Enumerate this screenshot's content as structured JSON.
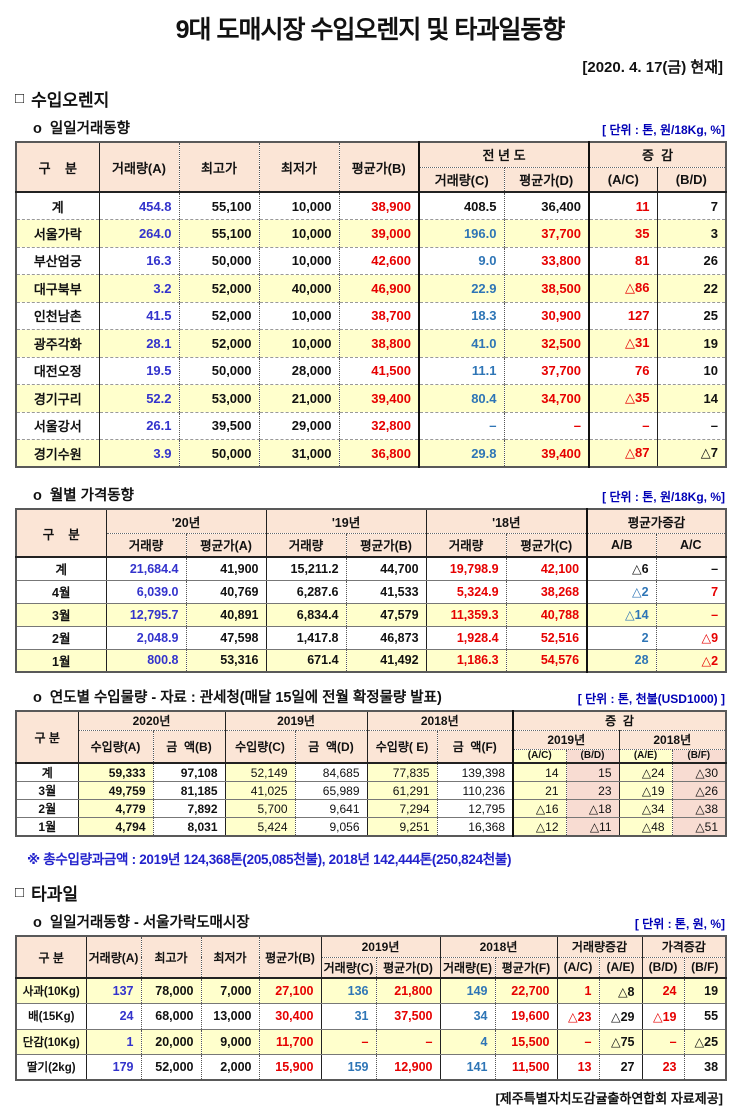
{
  "page": {
    "title": "9대 도매시장 수입오렌지 및 타과일동향",
    "date": "[2020. 4. 17(금) 현재]",
    "note": "※ 총수입량과금액 : 2019년 124,368톤(205,085천불),  2018년 142,444톤(250,824천불)",
    "footer": "[제주특별자치도감귤출하연합회 자료제공]"
  },
  "sections": {
    "orange": {
      "bullet": "□",
      "label": "수입오렌지"
    },
    "other_fruit": {
      "bullet": "□",
      "label": "타과일"
    }
  },
  "subsections": {
    "daily": {
      "bullet": "o",
      "label": "일일거래동향",
      "unit": "[ 단위 : 톤, 원/18Kg, %]"
    },
    "monthly": {
      "bullet": "o",
      "label": "월별 가격동향",
      "unit": "[ 단위 : 톤, 원/18Kg, %]"
    },
    "yearly": {
      "bullet": "o",
      "label": "연도별 수입물량 - 자료 : 관세청(매달 15일에 전월 확정물량 발표)",
      "unit": "[ 단위 : 톤, 천불(USD1000) ]"
    },
    "fruit_daily": {
      "bullet": "o",
      "label": "일일거래동향 - 서울가락도매시장",
      "unit": "[ 단위 : 톤, 원, %]"
    }
  },
  "colors": {
    "accent_red": "#e60000",
    "accent_blue": "#3333cc",
    "accent_lightblue": "#2e75b6",
    "header_bg": "#fbe5d6",
    "row_yellow": "#ffffcc",
    "cell_pink": "#f8dcd2",
    "note_blue": "#2222cc"
  },
  "tables": [
    {
      "id": "t1",
      "name": "orange-daily-trade-table",
      "widths": [
        83,
        80,
        80,
        80,
        80,
        85,
        85,
        68,
        69
      ],
      "header": [
        [
          {
            "t": "구    분",
            "rs": 2
          },
          {
            "t": "거래량(A)",
            "rs": 2,
            "sep": "s"
          },
          {
            "t": "최고가",
            "rs": 2,
            "sep": "d"
          },
          {
            "t": "최저가",
            "rs": 2,
            "sep": "d"
          },
          {
            "t": "평균가(B)",
            "rs": 2,
            "sep": "d"
          },
          {
            "t": "전 년 도",
            "cs": 2,
            "sep": "s2"
          },
          {
            "t": "증  감",
            "cs": 2,
            "sep": "s2"
          }
        ],
        [
          {
            "t": "거래량(C)",
            "sep": "s2"
          },
          {
            "t": "평균가(D)",
            "sep": "d"
          },
          {
            "t": "(A/C)",
            "sep": "s2"
          },
          {
            "t": "(B/D)",
            "sep": "s"
          }
        ]
      ],
      "col_align": [
        "c",
        "r",
        "r",
        "r",
        "r",
        "r",
        "r",
        "r",
        "r"
      ],
      "col_color": [
        "blk",
        "blue",
        "blk",
        "blk",
        "red",
        "lblue",
        "red",
        "red",
        "blk"
      ],
      "col_sep": [
        "",
        "s",
        "d",
        "d",
        "d",
        "s2",
        "d",
        "s2",
        "s"
      ],
      "rows": [
        {
          "bg": "w",
          "dbl": true,
          "cells": [
            "계",
            "454.8",
            "55,100",
            "10,000",
            "38,900",
            "408.5",
            "36,400",
            "11",
            "7"
          ],
          "colors": {
            "5": "blk",
            "6": "blk"
          }
        },
        {
          "bg": "y",
          "cells": [
            "서울가락",
            "264.0",
            "55,100",
            "10,000",
            "39,000",
            "196.0",
            "37,700",
            "35",
            "3"
          ]
        },
        {
          "bg": "w",
          "cells": [
            "부산엄궁",
            "16.3",
            "50,000",
            "10,000",
            "42,600",
            "9.0",
            "33,800",
            "81",
            "26"
          ]
        },
        {
          "bg": "y",
          "cells": [
            "대구북부",
            "3.2",
            "52,000",
            "40,000",
            "46,900",
            "22.9",
            "38,500",
            "△86",
            "22"
          ]
        },
        {
          "bg": "w",
          "cells": [
            "인천남촌",
            "41.5",
            "52,000",
            "10,000",
            "38,700",
            "18.3",
            "30,900",
            "127",
            "25"
          ]
        },
        {
          "bg": "y",
          "cells": [
            "광주각화",
            "28.1",
            "52,000",
            "10,000",
            "38,800",
            "41.0",
            "32,500",
            "△31",
            "19"
          ]
        },
        {
          "bg": "w",
          "cells": [
            "대전오정",
            "19.5",
            "50,000",
            "28,000",
            "41,500",
            "11.1",
            "37,700",
            "76",
            "10"
          ]
        },
        {
          "bg": "y",
          "cells": [
            "경기구리",
            "52.2",
            "53,000",
            "21,000",
            "39,400",
            "80.4",
            "34,700",
            "△35",
            "14"
          ]
        },
        {
          "bg": "w",
          "cells": [
            "서울강서",
            "26.1",
            "39,500",
            "29,000",
            "32,800",
            "–",
            "–",
            "–",
            "–"
          ]
        },
        {
          "bg": "y",
          "cells": [
            "경기수원",
            "3.9",
            "50,000",
            "31,000",
            "36,800",
            "29.8",
            "39,400",
            "△87",
            "△7"
          ]
        }
      ]
    },
    {
      "id": "t2",
      "name": "orange-monthly-price-table",
      "widths": [
        90,
        80,
        80,
        80,
        80,
        80,
        81,
        69,
        70
      ],
      "header": [
        [
          {
            "t": "구    분",
            "rs": 2
          },
          {
            "t": "'20년",
            "cs": 2,
            "sep": "s"
          },
          {
            "t": "'19년",
            "cs": 2,
            "sep": "s"
          },
          {
            "t": "'18년",
            "cs": 2,
            "sep": "s"
          },
          {
            "t": "평균가증감",
            "cs": 2,
            "sep": "s2"
          }
        ],
        [
          {
            "t": "거래량",
            "sep": "s"
          },
          {
            "t": "평균가(A)",
            "sep": "d"
          },
          {
            "t": "거래량",
            "sep": "s"
          },
          {
            "t": "평균가(B)",
            "sep": "d"
          },
          {
            "t": "거래량",
            "sep": "s"
          },
          {
            "t": "평균가(C)",
            "sep": "d"
          },
          {
            "t": "A/B",
            "sep": "s2"
          },
          {
            "t": "A/C",
            "sep": "d"
          }
        ]
      ],
      "col_align": [
        "c",
        "r",
        "r",
        "r",
        "r",
        "r",
        "r",
        "r",
        "r"
      ],
      "col_color": [
        "blk",
        "blue",
        "blk",
        "blk",
        "blk",
        "red",
        "red",
        "lblue",
        "red"
      ],
      "col_sep": [
        "",
        "s",
        "d",
        "s",
        "d",
        "s",
        "d",
        "s2",
        "d"
      ],
      "rows": [
        {
          "bg": "w",
          "dbl": true,
          "cells": [
            "계",
            "21,684.4",
            "41,900",
            "15,211.2",
            "44,700",
            "19,798.9",
            "42,100",
            "△6",
            "–"
          ],
          "colors": {
            "7": "blk",
            "8": "blk"
          }
        },
        {
          "bg": "w",
          "cells": [
            "4월",
            "6,039.0",
            "40,769",
            "6,287.6",
            "41,533",
            "5,324.9",
            "38,268",
            "△2",
            "7"
          ]
        },
        {
          "bg": "y",
          "cells": [
            "3월",
            "12,795.7",
            "40,891",
            "6,834.4",
            "47,579",
            "11,359.3",
            "40,788",
            "△14",
            "–"
          ]
        },
        {
          "bg": "w",
          "cells": [
            "2월",
            "2,048.9",
            "47,598",
            "1,417.8",
            "46,873",
            "1,928.4",
            "52,516",
            "2",
            "△9"
          ]
        },
        {
          "bg": "y",
          "cells": [
            "1월",
            "800.8",
            "53,316",
            "671.4",
            "41,492",
            "1,186.3",
            "54,576",
            "28",
            "△2"
          ]
        }
      ]
    },
    {
      "id": "t3",
      "name": "orange-yearly-import-table",
      "widths": [
        62,
        75,
        72,
        70,
        72,
        70,
        76,
        53,
        53,
        53,
        54
      ],
      "header": [
        [
          {
            "t": "구 분",
            "rs": 3
          },
          {
            "t": "2020년",
            "cs": 2,
            "sep": "s"
          },
          {
            "t": "2019년",
            "cs": 2,
            "sep": "s"
          },
          {
            "t": "2018년",
            "cs": 2,
            "sep": "s"
          },
          {
            "t": "증  감",
            "cs": 4,
            "sep": "s2"
          }
        ],
        [
          {
            "t": "수입량(A)",
            "rs": 2,
            "sep": "s"
          },
          {
            "t": "금  액(B)",
            "rs": 2,
            "sep": "d"
          },
          {
            "t": "수입량(C)",
            "rs": 2,
            "sep": "s"
          },
          {
            "t": "금  액(D)",
            "rs": 2,
            "sep": "d"
          },
          {
            "t": "수입량( E)",
            "rs": 2,
            "sep": "s"
          },
          {
            "t": "금  액(F)",
            "rs": 2,
            "sep": "d"
          },
          {
            "t": "2019년",
            "cs": 2,
            "sep": "s2"
          },
          {
            "t": "2018년",
            "cs": 2,
            "sep": "s"
          }
        ],
        [
          {
            "t": "(A/C)",
            "sep": "s2",
            "bg": "yel",
            "small": true
          },
          {
            "t": "(B/D)",
            "sep": "d",
            "bg": "pnk",
            "small": true
          },
          {
            "t": "(A/E)",
            "sep": "s",
            "bg": "yel",
            "small": true
          },
          {
            "t": "(B/F)",
            "sep": "d",
            "bg": "pnk",
            "small": true
          }
        ]
      ],
      "col_align": [
        "c",
        "r",
        "r",
        "r",
        "r",
        "r",
        "r",
        "r",
        "r",
        "r",
        "r"
      ],
      "col_color": [
        "blk",
        "blk",
        "blk",
        "blk",
        "blk",
        "blk",
        "blk",
        "blk",
        "blk",
        "blk",
        "blk"
      ],
      "col_sep": [
        "",
        "s",
        "d",
        "s",
        "d",
        "s",
        "d",
        "s2",
        "d",
        "s",
        "d"
      ],
      "col_bg": [
        "",
        "yel",
        "",
        "yel",
        "",
        "yel",
        "",
        "yel",
        "pnk",
        "yel",
        "pnk"
      ],
      "col_bold": [
        false,
        true,
        true,
        false,
        false,
        false,
        false,
        false,
        false,
        false,
        false
      ],
      "rows": [
        {
          "bg": "w",
          "dbl": true,
          "cells": [
            "계",
            "59,333",
            "97,108",
            "52,149",
            "84,685",
            "77,835",
            "139,398",
            "14",
            "15",
            "△24",
            "△30"
          ]
        },
        {
          "bg": "w",
          "cells": [
            "3월",
            "49,759",
            "81,185",
            "41,025",
            "65,989",
            "61,291",
            "110,236",
            "21",
            "23",
            "△19",
            "△26"
          ]
        },
        {
          "bg": "w",
          "cells": [
            "2월",
            "4,779",
            "7,892",
            "5,700",
            "9,641",
            "7,294",
            "12,795",
            "△16",
            "△18",
            "△34",
            "△38"
          ]
        },
        {
          "bg": "w",
          "cells": [
            "1월",
            "4,794",
            "8,031",
            "5,424",
            "9,056",
            "9,251",
            "16,368",
            "△12",
            "△11",
            "△48",
            "△51"
          ]
        }
      ]
    },
    {
      "id": "t4",
      "name": "other-fruit-daily-table",
      "widths": [
        70,
        55,
        60,
        58,
        62,
        55,
        64,
        55,
        62,
        42,
        43,
        42,
        42
      ],
      "header": [
        [
          {
            "t": "구 분",
            "rs": 2
          },
          {
            "t": "거래량(A)",
            "rs": 2,
            "sep": "s"
          },
          {
            "t": "최고가",
            "rs": 2,
            "sep": "d"
          },
          {
            "t": "최저가",
            "rs": 2,
            "sep": "d"
          },
          {
            "t": "평균가(B)",
            "rs": 2,
            "sep": "d"
          },
          {
            "t": "2019년",
            "cs": 2,
            "sep": "s"
          },
          {
            "t": "2018년",
            "cs": 2,
            "sep": "s"
          },
          {
            "t": "거래량증감",
            "cs": 2,
            "sep": "s"
          },
          {
            "t": "가격증감",
            "cs": 2,
            "sep": "s"
          }
        ],
        [
          {
            "t": "거래량(C)",
            "sep": "s"
          },
          {
            "t": "평균가(D)",
            "sep": "d"
          },
          {
            "t": "거래량(E)",
            "sep": "s"
          },
          {
            "t": "평균가(F)",
            "sep": "d"
          },
          {
            "t": "(A/C)",
            "sep": "s"
          },
          {
            "t": "(A/E)",
            "sep": "d"
          },
          {
            "t": "(B/D)",
            "sep": "s"
          },
          {
            "t": "(B/F)",
            "sep": "d"
          }
        ]
      ],
      "col_align": [
        "c",
        "r",
        "r",
        "r",
        "r",
        "r",
        "r",
        "r",
        "r",
        "r",
        "r",
        "r",
        "r"
      ],
      "col_color": [
        "blk",
        "blue",
        "blk",
        "blk",
        "red",
        "lblue",
        "red",
        "lblue",
        "red",
        "red",
        "blk",
        "red",
        "blk"
      ],
      "col_sep": [
        "",
        "s",
        "d",
        "d",
        "d",
        "s",
        "d",
        "s",
        "d",
        "s",
        "d",
        "s",
        "d"
      ],
      "rows": [
        {
          "bg": "y",
          "cells": [
            "사과(10Kg)",
            "137",
            "78,000",
            "7,000",
            "27,100",
            "136",
            "21,800",
            "149",
            "22,700",
            "1",
            "△8",
            "24",
            "19"
          ]
        },
        {
          "bg": "w",
          "cells": [
            "배(15Kg)",
            "24",
            "68,000",
            "13,000",
            "30,400",
            "31",
            "37,500",
            "34",
            "19,600",
            "△23",
            "△29",
            "△19",
            "55"
          ]
        },
        {
          "bg": "y",
          "cells": [
            "단감(10Kg)",
            "1",
            "20,000",
            "9,000",
            "11,700",
            "–",
            "–",
            "4",
            "15,500",
            "–",
            "△75",
            "–",
            "△25"
          ],
          "colors": {
            "5": "red"
          }
        },
        {
          "bg": "w",
          "cells": [
            "딸기(2kg)",
            "179",
            "52,000",
            "2,000",
            "15,900",
            "159",
            "12,900",
            "141",
            "11,500",
            "13",
            "27",
            "23",
            "38"
          ]
        }
      ]
    }
  ]
}
